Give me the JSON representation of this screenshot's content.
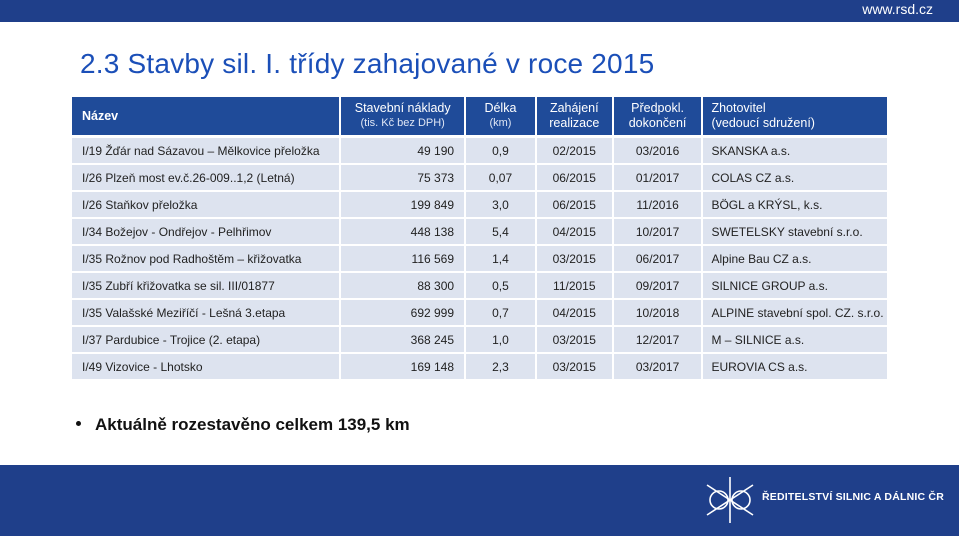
{
  "header": {
    "url": "www.rsd.cz"
  },
  "title": "2.3 Stavby sil. I. třídy zahajované v roce 2015",
  "table": {
    "columns": {
      "name": "Název",
      "cost_line1": "Stavební náklady",
      "cost_line2": "(tis. Kč bez DPH)",
      "length_line1": "Délka",
      "length_line2": "(km)",
      "start_line1": "Zahájení",
      "start_line2": "realizace",
      "end_line1": "Předpokl.",
      "end_line2": "dokončení",
      "contractor_line1": "Zhotovitel",
      "contractor_line2": "(vedoucí sdružení)"
    },
    "rows": [
      {
        "name": "I/19 Žďár nad Sázavou – Mělkovice přeložka",
        "cost": "49 190",
        "length": "0,9",
        "start": "02/2015",
        "end": "03/2016",
        "contractor": "SKANSKA a.s."
      },
      {
        "name": "I/26 Plzeň most ev.č.26-009..1,2 (Letná)",
        "cost": "75 373",
        "length": "0,07",
        "start": "06/2015",
        "end": "01/2017",
        "contractor": "COLAS CZ a.s."
      },
      {
        "name": "I/26 Staňkov přeložka",
        "cost": "199 849",
        "length": "3,0",
        "start": "06/2015",
        "end": "11/2016",
        "contractor": "BÖGL a KRÝSL, k.s."
      },
      {
        "name": "I/34 Božejov - Ondřejov - Pelhřimov",
        "cost": "448 138",
        "length": "5,4",
        "start": "04/2015",
        "end": "10/2017",
        "contractor": "SWETELSKY stavební s.r.o."
      },
      {
        "name": "I/35 Rožnov pod Radhoštěm – křižovatka",
        "cost": "116 569",
        "length": "1,4",
        "start": "03/2015",
        "end": "06/2017",
        "contractor": "Alpine Bau CZ a.s."
      },
      {
        "name": "I/35 Zubří křižovatka se sil. III/01877",
        "cost": "88 300",
        "length": "0,5",
        "start": "11/2015",
        "end": "09/2017",
        "contractor": "SILNICE GROUP a.s."
      },
      {
        "name": "I/35 Valašské Meziříčí - Lešná 3.etapa",
        "cost": "692 999",
        "length": "0,7",
        "start": "04/2015",
        "end": "10/2018",
        "contractor": "ALPINE stavební spol. CZ. s.r.o."
      },
      {
        "name": "I/37 Pardubice - Trojice (2. etapa)",
        "cost": "368 245",
        "length": "1,0",
        "start": "03/2015",
        "end": "12/2017",
        "contractor": "M – SILNICE a.s."
      },
      {
        "name": "I/49 Vizovice - Lhotsko",
        "cost": "169 148",
        "length": "2,3",
        "start": "03/2015",
        "end": "03/2017",
        "contractor": "EUROVIA CS a.s."
      }
    ]
  },
  "bullet": "Aktuálně rozestavěno celkem 139,5 km",
  "footer": {
    "org_name": "ŘEDITELSTVÍ SILNIC A DÁLNIC ČR",
    "logo_icon": "highway-interchange-icon"
  },
  "colors": {
    "brand_blue": "#1f3f8a",
    "header_blue": "#1f4b99",
    "title_blue": "#1b4fb8",
    "row_bg": "#dde3ef"
  }
}
